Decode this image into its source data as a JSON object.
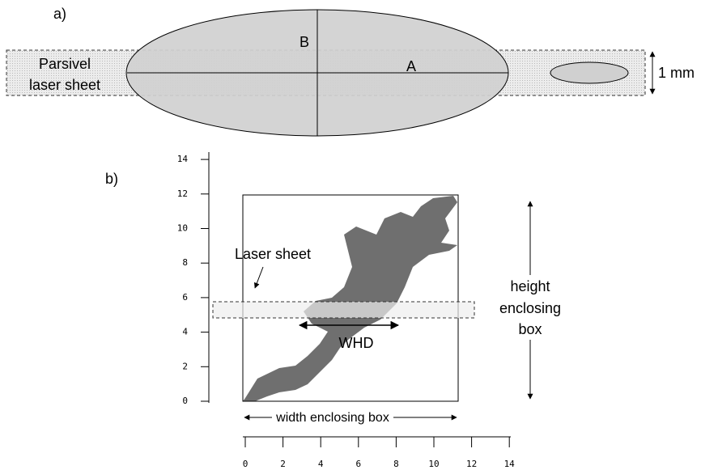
{
  "panel_a": {
    "label": "a)",
    "laser_label_line1": "Parsivel",
    "laser_label_line2": "laser sheet",
    "axis_b": "B",
    "axis_a": "A",
    "thickness": "1 mm"
  },
  "panel_b": {
    "label": "b)",
    "laser_label": "Laser sheet",
    "whd": "WHD",
    "width_label": "width enclosing box",
    "height_label_line1": "height",
    "height_label_line2": "enclosing",
    "height_label_line3": "box",
    "y_ticks": [
      0,
      2,
      4,
      6,
      8,
      10,
      12,
      14
    ],
    "x_ticks": [
      0,
      2,
      4,
      6,
      8,
      10,
      12,
      14
    ]
  }
}
